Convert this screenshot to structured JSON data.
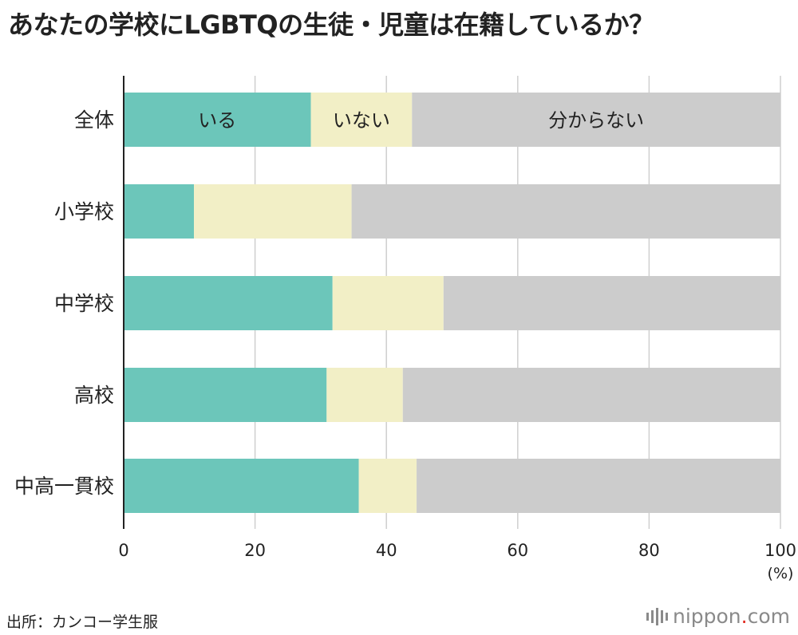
{
  "title": "あなたの学校にLGBTQの生徒・児童は在籍しているか？",
  "source": "出所：カンコー学生服",
  "logo": {
    "name": "nippon",
    "dot": ".",
    "tld": "com"
  },
  "colors": {
    "iru": "#6cc6ba",
    "inai": "#f2efc6",
    "wakaranai": "#cccccc"
  },
  "chart_data": {
    "type": "bar",
    "orientation": "horizontal",
    "stacked": true,
    "categories": [
      "全体",
      "小学校",
      "中学校",
      "高校",
      "中高一貫校"
    ],
    "series": [
      {
        "name": "いる",
        "values": [
          28.5,
          10.7,
          31.8,
          30.9,
          35.8
        ]
      },
      {
        "name": "いない",
        "values": [
          15.4,
          24.0,
          16.9,
          11.6,
          8.8
        ]
      },
      {
        "name": "分からない",
        "values": [
          56.1,
          65.3,
          51.3,
          57.5,
          55.4
        ]
      }
    ],
    "xlim": [
      0,
      100
    ],
    "xticks": [
      0,
      20,
      40,
      60,
      80,
      100
    ],
    "xunit": "(%)",
    "grid": true,
    "legend": "inside-first-bar"
  }
}
